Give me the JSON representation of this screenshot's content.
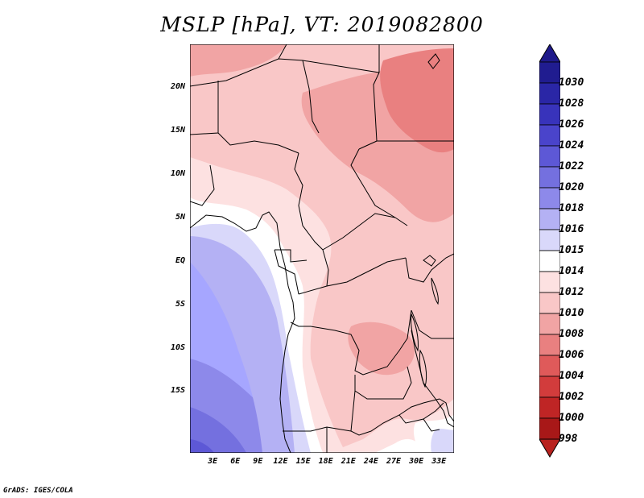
{
  "title": "MSLP [hPa], VT: 2019082800",
  "credit": "GrADS: IGES/COLA",
  "map": {
    "lon_range": [
      0,
      35
    ],
    "lat_range": [
      -22,
      25
    ],
    "lat_labels": [
      {
        "lat": 20,
        "label": "20N"
      },
      {
        "lat": 15,
        "label": "15N"
      },
      {
        "lat": 10,
        "label": "10N"
      },
      {
        "lat": 5,
        "label": "5N"
      },
      {
        "lat": 0,
        "label": "EQ"
      },
      {
        "lat": -5,
        "label": "5S"
      },
      {
        "lat": -10,
        "label": "10S"
      },
      {
        "lat": -15,
        "label": "15S"
      }
    ],
    "lon_labels": [
      {
        "lon": 3,
        "label": "3E"
      },
      {
        "lon": 6,
        "label": "6E"
      },
      {
        "lon": 9,
        "label": "9E"
      },
      {
        "lon": 12,
        "label": "12E"
      },
      {
        "lon": 15,
        "label": "15E"
      },
      {
        "lon": 18,
        "label": "18E"
      },
      {
        "lon": 21,
        "label": "21E"
      },
      {
        "lon": 24,
        "label": "24E"
      },
      {
        "lon": 27,
        "label": "27E"
      },
      {
        "lon": 30,
        "label": "30E"
      },
      {
        "lon": 33,
        "label": "33E"
      }
    ],
    "ocean_color": "#a6a6ff"
  },
  "colorbar": {
    "levels": [
      {
        "label": "1030",
        "color": "#201c90"
      },
      {
        "label": "1028",
        "color": "#2a26a6"
      },
      {
        "label": "1026",
        "color": "#3833bb"
      },
      {
        "label": "1024",
        "color": "#4a44cb"
      },
      {
        "label": "1022",
        "color": "#5d58d6"
      },
      {
        "label": "1020",
        "color": "#7470df"
      },
      {
        "label": "1018",
        "color": "#8d89ea"
      },
      {
        "label": "1016",
        "color": "#b4b1f4"
      },
      {
        "label": "1015",
        "color": "#d9d8fa"
      },
      {
        "label": "1014",
        "color": "#ffffff"
      },
      {
        "label": "1012",
        "color": "#fde1e1"
      },
      {
        "label": "1010",
        "color": "#f9c7c7"
      },
      {
        "label": "1008",
        "color": "#f1a4a4"
      },
      {
        "label": "1006",
        "color": "#e98080"
      },
      {
        "label": "1004",
        "color": "#df5a5a"
      },
      {
        "label": "1002",
        "color": "#d23c3c"
      },
      {
        "label": "1000",
        "color": "#bf2525"
      },
      {
        "label": "998",
        "color": "#a81818"
      }
    ],
    "top_color": "#1f1a8a",
    "bottom_color": "#b8221f"
  }
}
